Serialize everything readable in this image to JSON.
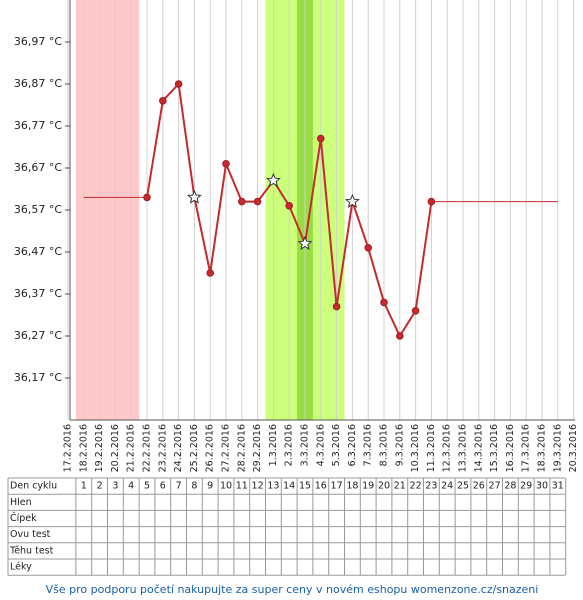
{
  "chart_data": {
    "type": "line",
    "categories": [
      "17.2.2016",
      "18.2.2016",
      "19.2.2016",
      "20.2.2016",
      "21.2.2016",
      "22.2.2016",
      "23.2.2016",
      "24.2.2016",
      "25.2.2016",
      "26.2.2016",
      "27.2.2016",
      "28.2.2016",
      "29.2.2016",
      "1.3.2016",
      "2.3.2016",
      "3.3.2016",
      "4.3.2016",
      "5.3.2016",
      "6.3.2016",
      "7.3.2016",
      "8.3.2016",
      "9.3.2016",
      "10.3.2016",
      "11.3.2016",
      "12.3.2016",
      "13.3.2016",
      "14.3.2016",
      "15.3.2016",
      "16.3.2016",
      "17.3.2016",
      "18.3.2016",
      "19.3.2016",
      "20.3.2016"
    ],
    "series": [
      {
        "color": "#c62a2f",
        "values": [
          null,
          null,
          null,
          null,
          null,
          36.6,
          36.83,
          36.87,
          36.6,
          36.42,
          36.68,
          36.59,
          36.59,
          36.64,
          36.58,
          36.49,
          36.74,
          36.34,
          36.59,
          36.48,
          36.35,
          36.27,
          36.33,
          36.59,
          null,
          null,
          null,
          null,
          null,
          null,
          null,
          null,
          null
        ],
        "markers": [
          null,
          null,
          null,
          null,
          null,
          "circle",
          "circle",
          "circle",
          "star",
          "circle",
          "circle",
          "circle",
          "circle",
          "star",
          "circle",
          "star",
          "circle",
          "circle",
          "star",
          "circle",
          "circle",
          "circle",
          "circle",
          "circle",
          null,
          null,
          null,
          null,
          null,
          null,
          null,
          null,
          null
        ]
      },
      {
        "color": "#c62a2f",
        "values": [
          null,
          36.6,
          36.6,
          36.6,
          36.6,
          36.6,
          null,
          null,
          null,
          null,
          null,
          null,
          null,
          null,
          null,
          null,
          null,
          null,
          null,
          null,
          null,
          null,
          null,
          36.59,
          36.59,
          36.59,
          36.59,
          36.59,
          36.59,
          36.59,
          36.59,
          36.59,
          null
        ]
      }
    ],
    "highlights": [
      {
        "from": 1,
        "to": 4,
        "color": "#ffc9c9"
      },
      {
        "from": 13,
        "to": 17,
        "color": "#ccff7a"
      },
      {
        "from": 15,
        "to": 15,
        "color": "#99dd44"
      }
    ],
    "ylim": [
      36.07,
      37.07
    ],
    "yticks": [
      {
        "value": 36.97,
        "label": "36,97 °C"
      },
      {
        "value": 36.87,
        "label": "36,87 °C"
      },
      {
        "value": 36.77,
        "label": "36,77 °C"
      },
      {
        "value": 36.67,
        "label": "36,67 °C"
      },
      {
        "value": 36.57,
        "label": "36,57 °C"
      },
      {
        "value": 36.47,
        "label": "36,47 °C"
      },
      {
        "value": 36.37,
        "label": "36,37 °C"
      },
      {
        "value": 36.27,
        "label": "36,27 °C"
      },
      {
        "value": 36.17,
        "label": "36,17 °C"
      }
    ]
  },
  "table": {
    "header": "Den cyklu",
    "cycle_days": [
      1,
      2,
      3,
      4,
      5,
      6,
      7,
      8,
      9,
      10,
      11,
      12,
      13,
      14,
      15,
      16,
      17,
      18,
      19,
      20,
      21,
      22,
      23,
      24,
      25,
      26,
      27,
      28,
      29,
      30,
      31
    ],
    "rows": [
      "Hlen",
      "Čípek",
      "Ovu test",
      "Těhu test",
      "Léky"
    ]
  },
  "footer": "Vše pro podporu početí nakupujte za super ceny v novém eshopu womenzone.cz/snazeni"
}
